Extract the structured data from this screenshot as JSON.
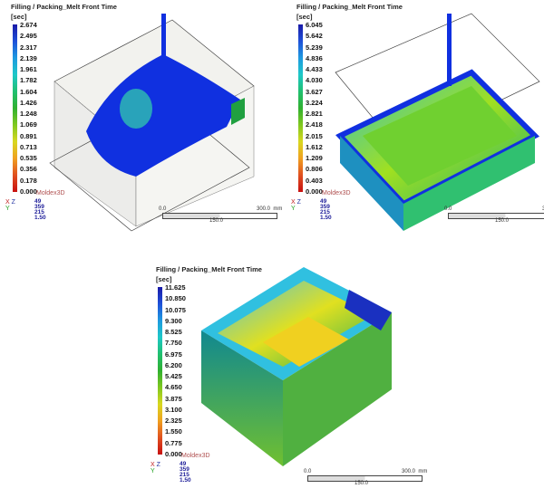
{
  "panels": [
    {
      "title": "Filling / Packing_Melt Front Time",
      "unit": "[sec]",
      "legend": [
        "2.674",
        "2.495",
        "2.317",
        "2.139",
        "1.961",
        "1.782",
        "1.604",
        "1.426",
        "1.248",
        "1.069",
        "0.891",
        "0.713",
        "0.535",
        "0.356",
        "0.178",
        "0.000"
      ],
      "brand": "Moldex3D",
      "orientation": [
        "49",
        "359",
        "215",
        "1.50"
      ],
      "scale": {
        "start": "0.0",
        "end": "300.0",
        "unit": "mm",
        "mid": "150.0"
      }
    },
    {
      "title": "Filling / Packing_Melt Front Time",
      "unit": "[sec]",
      "legend": [
        "6.045",
        "5.642",
        "5.239",
        "4.836",
        "4.433",
        "4.030",
        "3.627",
        "3.224",
        "2.821",
        "2.418",
        "2.015",
        "1.612",
        "1.209",
        "0.806",
        "0.403",
        "0.000"
      ],
      "brand": "Moldex3D",
      "orientation": [
        "49",
        "359",
        "215",
        "1.50"
      ],
      "scale": {
        "start": "0.0",
        "end": "300.0",
        "unit": "mm",
        "mid": "150.0"
      }
    },
    {
      "title": "Filling / Packing_Melt Front Time",
      "unit": "[sec]",
      "legend": [
        "11.625",
        "10.850",
        "10.075",
        "9.300",
        "8.525",
        "7.750",
        "6.975",
        "6.200",
        "5.425",
        "4.650",
        "3.875",
        "3.100",
        "2.325",
        "1.550",
        "0.775",
        "0.000"
      ],
      "brand": "Moldex3D",
      "orientation": [
        "49",
        "359",
        "215",
        "1.50"
      ],
      "scale": {
        "start": "0.0",
        "end": "300.0",
        "unit": "mm",
        "mid": "150.0"
      }
    }
  ],
  "axes": {
    "x": "X",
    "z": "Z",
    "y": "Y"
  }
}
